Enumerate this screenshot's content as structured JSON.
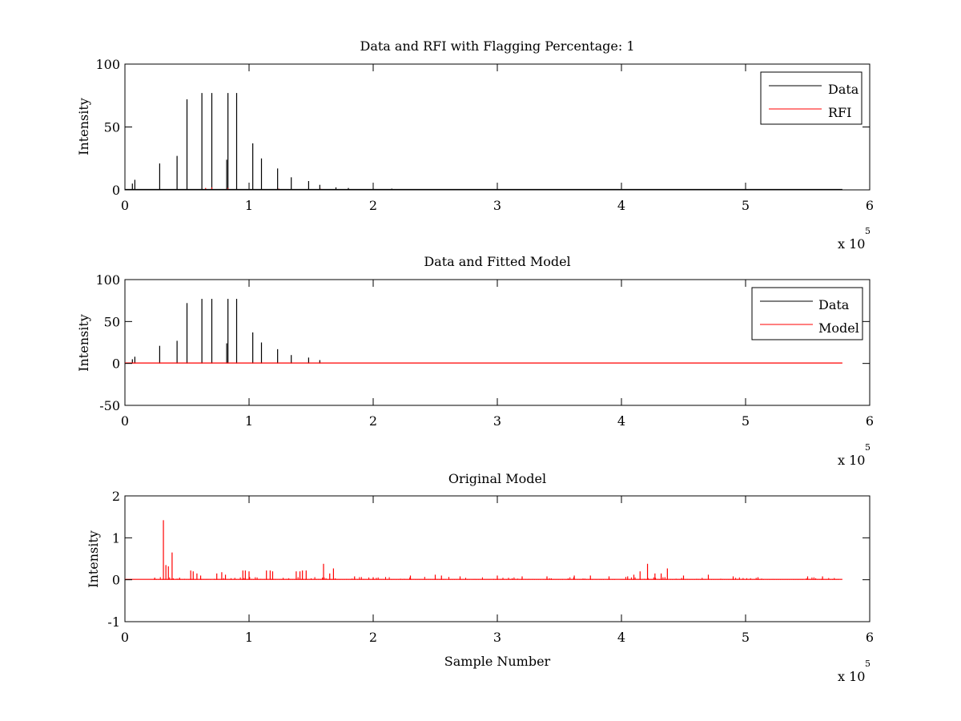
{
  "colors": {
    "data": "#000000",
    "rfi": "#ff0000",
    "model": "#ff0000",
    "axes": "#000000",
    "background": "#ffffff"
  },
  "chart_data": [
    {
      "type": "line",
      "title": "Data and RFI with Flagging Percentage: 1",
      "xlabel": "",
      "ylabel": "Intensity",
      "xlim": [
        0,
        600000
      ],
      "ylim": [
        0,
        100
      ],
      "xticks": [
        "0",
        "1",
        "2",
        "3",
        "4",
        "5",
        "6"
      ],
      "yticks": [
        "0",
        "50",
        "100"
      ],
      "ytick_values": [
        0,
        50,
        100
      ],
      "x_exponent": {
        "base": "x 10",
        "power": "5"
      },
      "grid": false,
      "legend": {
        "position": "top-right",
        "entries": [
          "Data",
          "RFI"
        ]
      },
      "series": [
        {
          "name": "Data",
          "style": "spikes",
          "color": "#000000",
          "x": [
            6000,
            8000,
            28000,
            42000,
            50000,
            62000,
            70000,
            82000,
            83000,
            90000,
            103000,
            110000,
            123000,
            134000,
            148000,
            157000,
            170000,
            180000,
            200000,
            215000
          ],
          "values": [
            5,
            8,
            21,
            27,
            72,
            77,
            77,
            24,
            77,
            77,
            37,
            25,
            17,
            10,
            7,
            4,
            2,
            1.5,
            1,
            1
          ]
        },
        {
          "name": "RFI",
          "style": "spikes",
          "color": "#ff0000",
          "x": [
            65000,
            70000,
            83000,
            124000,
            158000
          ],
          "values": [
            1.5,
            2,
            1.5,
            1,
            0.8
          ]
        }
      ],
      "baseline_end": 578000
    },
    {
      "type": "line",
      "title": "Data and Fitted Model",
      "xlabel": "",
      "ylabel": "Intensity",
      "xlim": [
        0,
        600000
      ],
      "ylim": [
        -50,
        100
      ],
      "xticks": [
        "0",
        "1",
        "2",
        "3",
        "4",
        "5",
        "6"
      ],
      "yticks": [
        "-50",
        "0",
        "50",
        "100"
      ],
      "ytick_values": [
        -50,
        0,
        50,
        100
      ],
      "x_exponent": {
        "base": "x 10",
        "power": "5"
      },
      "grid": false,
      "legend": {
        "position": "top-right",
        "entries": [
          "Data",
          "Model"
        ]
      },
      "series": [
        {
          "name": "Data",
          "style": "spikes",
          "color": "#000000",
          "x": [
            6000,
            8000,
            28000,
            42000,
            50000,
            62000,
            70000,
            82000,
            83000,
            90000,
            103000,
            110000,
            123000,
            134000,
            148000,
            157000
          ],
          "values": [
            5,
            8,
            21,
            27,
            72,
            77,
            77,
            24,
            77,
            77,
            37,
            25,
            17,
            10,
            7,
            4
          ]
        },
        {
          "name": "Model",
          "style": "flat",
          "color": "#ff0000",
          "x": [
            0,
            578000
          ],
          "values": [
            0.5,
            0.5
          ]
        }
      ]
    },
    {
      "type": "line",
      "title": "Original Model",
      "xlabel": "Sample Number",
      "ylabel": "Intensity",
      "xlim": [
        0,
        600000
      ],
      "ylim": [
        -1,
        2
      ],
      "xticks": [
        "0",
        "1",
        "2",
        "3",
        "4",
        "5",
        "6"
      ],
      "yticks": [
        "-1",
        "0",
        "1",
        "2"
      ],
      "ytick_values": [
        -1,
        0,
        1,
        2
      ],
      "x_exponent": {
        "base": "x 10",
        "power": "5"
      },
      "grid": false,
      "legend": null,
      "series": [
        {
          "name": "",
          "style": "spikes",
          "color": "#ff0000",
          "x": [
            24000,
            31000,
            33000,
            35000,
            38000,
            44000,
            53000,
            55000,
            58000,
            61000,
            74000,
            78000,
            81000,
            95000,
            97000,
            100000,
            114000,
            117000,
            119000,
            138000,
            141000,
            143000,
            146000,
            160000,
            165000,
            168000,
            185000,
            200000,
            230000,
            250000,
            255000,
            270000,
            300000,
            320000,
            340000,
            362000,
            375000,
            390000,
            405000,
            410000,
            415000,
            421000,
            427000,
            432000,
            437000,
            450000,
            470000,
            490000,
            510000,
            550000,
            562000
          ],
          "values": [
            0.05,
            1.42,
            0.35,
            0.32,
            0.65,
            0.05,
            0.22,
            0.2,
            0.15,
            0.1,
            0.15,
            0.18,
            0.12,
            0.22,
            0.22,
            0.2,
            0.22,
            0.22,
            0.2,
            0.2,
            0.2,
            0.22,
            0.22,
            0.38,
            0.15,
            0.27,
            0.08,
            0.06,
            0.1,
            0.12,
            0.1,
            0.08,
            0.1,
            0.08,
            0.08,
            0.1,
            0.1,
            0.08,
            0.08,
            0.12,
            0.2,
            0.38,
            0.15,
            0.15,
            0.27,
            0.1,
            0.12,
            0.08,
            0.06,
            0.08,
            0.08
          ]
        }
      ],
      "noise_range": [
        24000,
        575000
      ],
      "baseline_end": 578000
    }
  ]
}
